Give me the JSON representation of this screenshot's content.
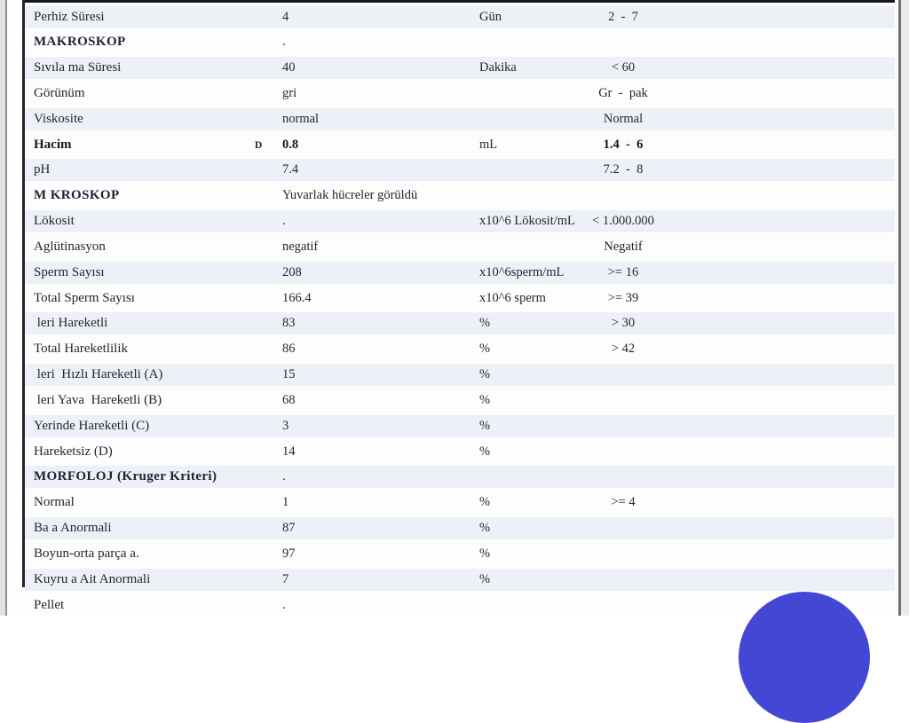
{
  "table": {
    "rows": [
      {
        "name": "Perhiz Süresi",
        "flag": "",
        "value": "4",
        "unit": "Gün",
        "range": "2  -  7",
        "bold": false,
        "section": false,
        "striped": true
      },
      {
        "name": "MAKROSKOP",
        "flag": "",
        "value": ".",
        "unit": "",
        "range": "",
        "bold": false,
        "section": true,
        "striped": false
      },
      {
        "name": "Sıvıla ma Süresi",
        "flag": "",
        "value": "40",
        "unit": "Dakika",
        "range": "< 60",
        "bold": false,
        "section": false,
        "striped": true
      },
      {
        "name": "Görünüm",
        "flag": "",
        "value": "gri",
        "unit": "",
        "range": "Gr  -  pak",
        "bold": false,
        "section": false,
        "striped": false
      },
      {
        "name": "Viskosite",
        "flag": "",
        "value": "normal",
        "unit": "",
        "range": "Normal",
        "bold": false,
        "section": false,
        "striped": true
      },
      {
        "name": "Hacim",
        "flag": "D",
        "value": "0.8",
        "unit": "mL",
        "range": "1.4  -  6",
        "bold": true,
        "section": false,
        "striped": false
      },
      {
        "name": "pH",
        "flag": "",
        "value": "7.4",
        "unit": "",
        "range": "7.2  -  8",
        "bold": false,
        "section": false,
        "striped": true
      },
      {
        "name": "M KROSKOP",
        "flag": "",
        "value": "Yuvarlak hücreler görüldü",
        "unit": "",
        "range": "",
        "bold": false,
        "section": true,
        "striped": false
      },
      {
        "name": "Lökosit",
        "flag": "",
        "value": ".",
        "unit": "x10^6 Lökosit/mL",
        "range": "< 1.000.000",
        "bold": false,
        "section": false,
        "striped": true
      },
      {
        "name": "Aglütinasyon",
        "flag": "",
        "value": "negatif",
        "unit": "",
        "range": "Negatif",
        "bold": false,
        "section": false,
        "striped": false
      },
      {
        "name": "Sperm Sayısı",
        "flag": "",
        "value": "208",
        "unit": "x10^6sperm/mL",
        "range": ">= 16",
        "bold": false,
        "section": false,
        "striped": true
      },
      {
        "name": "Total Sperm Sayısı",
        "flag": "",
        "value": "166.4",
        "unit": "x10^6 sperm",
        "range": ">= 39",
        "bold": false,
        "section": false,
        "striped": false
      },
      {
        "name": " leri Hareketli",
        "flag": "",
        "value": "83",
        "unit": "%",
        "range": "> 30",
        "bold": false,
        "section": false,
        "striped": true
      },
      {
        "name": "Total Hareketlilik",
        "flag": "",
        "value": "86",
        "unit": "%",
        "range": "> 42",
        "bold": false,
        "section": false,
        "striped": false
      },
      {
        "name": " leri  Hızlı Hareketli (A)",
        "flag": "",
        "value": "15",
        "unit": "%",
        "range": "",
        "bold": false,
        "section": false,
        "striped": true
      },
      {
        "name": " leri Yava  Hareketli (B)",
        "flag": "",
        "value": "68",
        "unit": "%",
        "range": "",
        "bold": false,
        "section": false,
        "striped": false
      },
      {
        "name": "Yerinde Hareketli (C)",
        "flag": "",
        "value": "3",
        "unit": "%",
        "range": "",
        "bold": false,
        "section": false,
        "striped": true
      },
      {
        "name": "Hareketsiz (D)",
        "flag": "",
        "value": "14",
        "unit": "%",
        "range": "",
        "bold": false,
        "section": false,
        "striped": false
      },
      {
        "name": "MORFOLOJ (Kruger Kriteri)",
        "flag": "",
        "value": ".",
        "unit": "",
        "range": "",
        "bold": false,
        "section": true,
        "striped": true
      },
      {
        "name": "Normal",
        "flag": "",
        "value": "1",
        "unit": "%",
        "range": ">= 4",
        "bold": false,
        "section": false,
        "striped": false
      },
      {
        "name": "Ba a Anormali",
        "flag": "",
        "value": "87",
        "unit": "%",
        "range": "",
        "bold": false,
        "section": false,
        "striped": true
      },
      {
        "name": "Boyun-orta parça a.",
        "flag": "",
        "value": "97",
        "unit": "%",
        "range": "",
        "bold": false,
        "section": false,
        "striped": false
      },
      {
        "name": "Kuyru a Ait Anormali",
        "flag": "",
        "value": "7",
        "unit": "%",
        "range": "",
        "bold": false,
        "section": false,
        "striped": true
      },
      {
        "name": "Pellet",
        "flag": "",
        "value": ".",
        "unit": "",
        "range": "",
        "bold": false,
        "section": false,
        "striped": false
      }
    ]
  },
  "chat": {
    "launcher_label": ""
  },
  "colors": {
    "stripe": "#edf1f7",
    "chat_launcher": "#4446d4",
    "text": "#24262f",
    "table_border": "#23232e"
  }
}
